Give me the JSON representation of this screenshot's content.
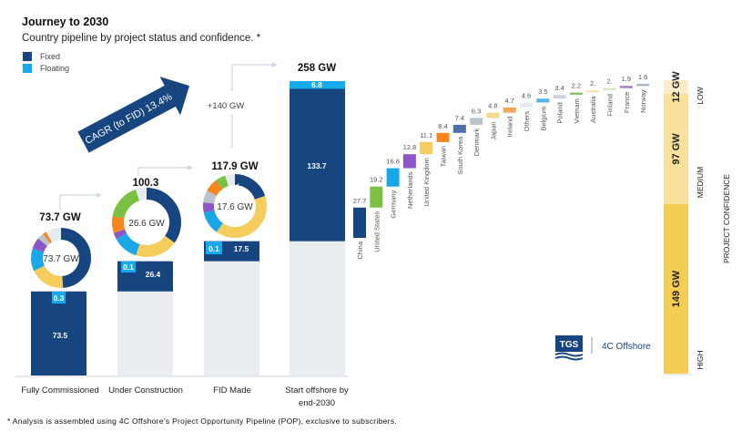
{
  "title": "Journey to 2030",
  "subtitle": "Country pipeline by project status and confidence. *",
  "footnote": "* Analysis is assembled using 4C Offshore’s Project Opportunity Pipeline (POP), exclusive to subscribers.",
  "logo": {
    "mark": "TGS",
    "name": "4C Offshore"
  },
  "colors": {
    "fixed": "#17457f",
    "floating": "#16a9ef",
    "remaining": "#e9edf0",
    "arrow": "#17457f"
  },
  "chart_data": [
    {
      "type": "bar",
      "subtype": "waterfall-stacked",
      "legend": {
        "placement": "top-left",
        "items": [
          "Fixed",
          "Floating"
        ]
      },
      "categories": [
        "Fully Commissioned",
        "Under Construction",
        "FID Made",
        "Start offshore by end-2030"
      ],
      "category_lines": [
        [
          "Fully Commissioned"
        ],
        [
          "Under Construction"
        ],
        [
          "FID Made"
        ],
        [
          "Start offshore by",
          "end-2030"
        ]
      ],
      "series": [
        {
          "name": "Fixed",
          "values": [
            73.5,
            26.4,
            17.5,
            133.7
          ],
          "labels": [
            "73.5",
            "26.4",
            "17.5",
            "133.7"
          ]
        },
        {
          "name": "Floating",
          "values": [
            0.3,
            0.1,
            0.1,
            6.8
          ],
          "labels": [
            "0.3",
            "0.1",
            "0.1",
            "6.8"
          ]
        }
      ],
      "totals": [
        "73.7 GW",
        "100.3",
        "117.9 GW",
        "258 GW"
      ],
      "delta_label": "+140 GW",
      "cagr_label": "CAGR (to FID) 13.4%"
    },
    {
      "type": "pie",
      "subtype": "donut",
      "donuts": [
        {
          "center_label": "73.7 GW",
          "segments": [
            {
              "country": "China",
              "value": 36
            },
            {
              "country": "United Kingdom",
              "value": 14
            },
            {
              "country": "Germany",
              "value": 9
            },
            {
              "country": "Netherlands",
              "value": 4.5
            },
            {
              "country": "Denmark",
              "value": 2.5
            },
            {
              "country": "Taiwan",
              "value": 1.5
            },
            {
              "country": "Others",
              "value": 6.2
            }
          ]
        },
        {
          "center_label": "26.6 GW",
          "segments": [
            {
              "country": "China",
              "value": 9.3
            },
            {
              "country": "United Kingdom",
              "value": 5.3
            },
            {
              "country": "Germany",
              "value": 3.2
            },
            {
              "country": "Netherlands",
              "value": 0.8
            },
            {
              "country": "Taiwan",
              "value": 2.1
            },
            {
              "country": "United States",
              "value": 4.5
            },
            {
              "country": "Others",
              "value": 1.4
            }
          ]
        },
        {
          "center_label": "17.6 GW",
          "segments": [
            {
              "country": "China",
              "value": 3.5
            },
            {
              "country": "United Kingdom",
              "value": 7
            },
            {
              "country": "Germany",
              "value": 2.1
            },
            {
              "country": "Netherlands",
              "value": 0.9
            },
            {
              "country": "Denmark",
              "value": 1.1
            },
            {
              "country": "Taiwan",
              "value": 1.2
            },
            {
              "country": "United States",
              "value": 0.9
            },
            {
              "country": "Others",
              "value": 0.9
            }
          ]
        }
      ]
    },
    {
      "type": "bar",
      "subtype": "waterfall",
      "categories": [
        "China",
        "United States",
        "Germany",
        "Netherlands",
        "United Kingdom",
        "Taiwan",
        "South Korea",
        "Denmark",
        "Japan",
        "Ireland",
        "Others",
        "Belgium",
        "Poland",
        "Vietnam",
        "Australia",
        "Finland",
        "France",
        "Norway"
      ],
      "values": [
        27.7,
        19.2,
        16.8,
        12.8,
        11.1,
        8.4,
        7.4,
        6.3,
        4.8,
        4.7,
        4.6,
        3.5,
        3.4,
        2.2,
        2.0,
        2.0,
        1.9,
        1.6
      ],
      "labels": [
        "27.7",
        "19.2",
        "16.8",
        "12.8",
        "11.1",
        "8.4",
        "7.4",
        "6.3",
        "4.8",
        "4.7",
        "4.6",
        "3.5",
        "3.4",
        "2.2",
        "2.",
        "2.",
        "1.9",
        "1.6"
      ],
      "colors": [
        "#17457f",
        "#7ac143",
        "#19a7e8",
        "#8e55c8",
        "#f5cd5c",
        "#f7861e",
        "#4d6fa5",
        "#b8c4cc",
        "#f7d98a",
        "#f5a55a",
        "#e8ecef",
        "#52b8e8",
        "#cfd5da",
        "#8cc56a",
        "#f2e4b8",
        "#d8e8c0",
        "#a57fc8",
        "#aab8c4"
      ]
    },
    {
      "type": "bar",
      "subtype": "stacked-single",
      "title": "PROJECT CONFIDENCE",
      "categories": [
        "HIGH",
        "MEDIUM",
        "LOW"
      ],
      "values": [
        149,
        97,
        12
      ],
      "labels": [
        "149 GW",
        "97 GW",
        "12 GW"
      ],
      "colors": [
        "#f5cd55",
        "#f9e19c",
        "#fbeccb"
      ]
    }
  ]
}
